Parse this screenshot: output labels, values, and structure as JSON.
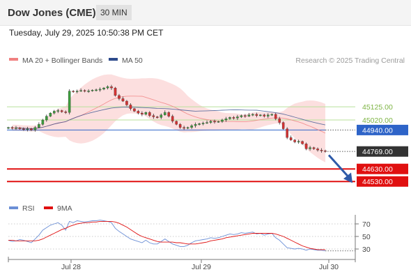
{
  "header": {
    "title": "Dow Jones (CME)",
    "interval": "30 MIN"
  },
  "datetime": "Tuesday, July 29, 2025 10:50:38 PM CET",
  "credit": "Research © 2025 Trading Central",
  "colors": {
    "bollinger_band": "#f9b8b8",
    "ma20": "#f08080",
    "ma50": "#2e4b8c",
    "candle_up": "#3c9c3c",
    "candle_down": "#d23232",
    "resistance_line": "#b8e09a",
    "pivot_line": "#2e64c8",
    "support_line": "#e01010",
    "current_price": "#333333",
    "rsi": "#6b8fd6",
    "rsi_ma": "#e01010",
    "arrow": "#2e5aa8"
  },
  "chart_data": [
    {
      "type": "candlestick",
      "legend": [
        {
          "name": "MA 20 + Bollinger Bands",
          "color": "#f08080"
        },
        {
          "name": "MA 50",
          "color": "#2e4b8c"
        }
      ],
      "legend_position": "top-left",
      "x_ticks": [
        "Jul 28",
        "Jul 29",
        "Jul 30"
      ],
      "ylim": [
        44420,
        45420
      ],
      "close": [
        44960,
        44955,
        44958,
        44950,
        44945,
        44950,
        44940,
        44960,
        44985,
        45020,
        45050,
        45075,
        45090,
        45095,
        45085,
        45080,
        45250,
        45245,
        45250,
        45255,
        45250,
        45252,
        45258,
        45260,
        45265,
        45275,
        45285,
        45275,
        45215,
        45190,
        45170,
        45140,
        45110,
        45090,
        45075,
        45065,
        45080,
        45055,
        45045,
        45040,
        45060,
        45080,
        45050,
        45010,
        44985,
        44960,
        44955,
        44960,
        44975,
        44985,
        44990,
        44995,
        45000,
        45010,
        45005,
        45008,
        45020,
        45030,
        45040,
        45035,
        45045,
        45055,
        45050,
        45060,
        45065,
        45055,
        45060,
        45050,
        45060,
        45065,
        45030,
        45000,
        44950,
        44880,
        44860,
        44845,
        44850,
        44830,
        44790,
        44800,
        44790,
        44780,
        44775,
        44769
      ],
      "levels": [
        {
          "label": "45125.00",
          "value": 45125,
          "kind": "resistance"
        },
        {
          "label": "45020.00",
          "value": 45020,
          "kind": "resistance"
        },
        {
          "label": "44940.00",
          "value": 44940,
          "kind": "pivot"
        },
        {
          "label": "44769.00",
          "value": 44769,
          "kind": "last"
        },
        {
          "label": "44630.00",
          "value": 44630,
          "kind": "support"
        },
        {
          "label": "44530.00",
          "value": 44530,
          "kind": "support"
        }
      ],
      "arrow": {
        "from": 44740,
        "to": 44540,
        "direction": "down"
      }
    },
    {
      "type": "line",
      "legend": [
        {
          "name": "RSI",
          "color": "#6b8fd6"
        },
        {
          "name": "9MA",
          "color": "#e01010"
        }
      ],
      "legend_position": "top-left",
      "ylim": [
        20,
        80
      ],
      "y_ticks": [
        "70",
        "50",
        "30"
      ],
      "rsi": [
        44,
        42,
        43,
        45,
        44,
        42,
        40,
        46,
        52,
        60,
        64,
        68,
        70,
        72,
        68,
        60,
        74,
        72,
        75,
        74,
        73,
        74,
        75,
        75,
        76,
        75,
        74,
        72,
        63,
        58,
        54,
        50,
        46,
        44,
        42,
        40,
        44,
        40,
        38,
        38,
        42,
        46,
        42,
        38,
        36,
        34,
        34,
        36,
        40,
        43,
        44,
        45,
        46,
        48,
        47,
        48,
        50,
        52,
        54,
        53,
        54,
        56,
        55,
        56,
        57,
        54,
        55,
        52,
        54,
        55,
        48,
        44,
        38,
        32,
        31,
        30,
        31,
        30,
        28,
        30,
        29,
        28,
        28,
        27
      ],
      "rsi_ma": [
        44,
        44,
        43,
        43,
        43,
        43,
        43,
        43,
        44,
        46,
        49,
        52,
        55,
        58,
        61,
        63,
        66,
        68,
        70,
        71,
        72,
        72,
        73,
        73,
        74,
        74,
        74,
        74,
        73,
        71,
        68,
        65,
        61,
        57,
        53,
        50,
        48,
        46,
        44,
        42,
        41,
        41,
        41,
        41,
        40,
        40,
        39,
        38,
        38,
        38,
        39,
        40,
        41,
        43,
        44,
        45,
        46,
        48,
        49,
        50,
        51,
        52,
        53,
        54,
        55,
        55,
        55,
        55,
        55,
        55,
        54,
        52,
        50,
        47,
        44,
        41,
        38,
        35,
        33,
        31,
        30,
        29,
        29,
        29
      ]
    }
  ]
}
